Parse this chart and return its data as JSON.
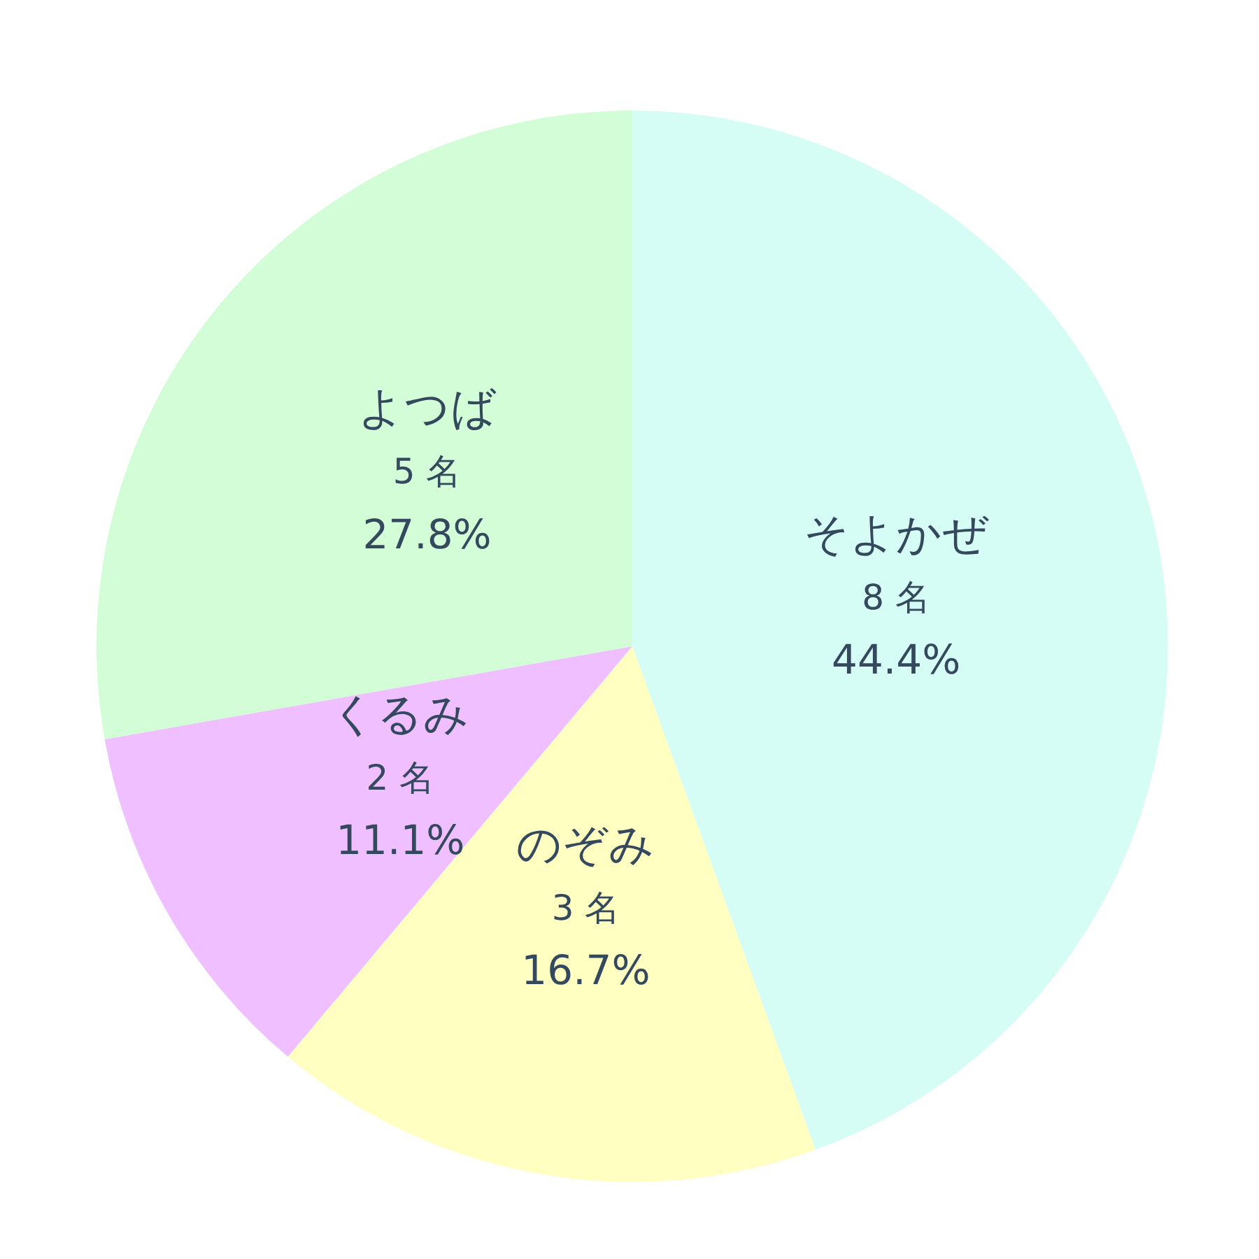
{
  "chart_data": {
    "type": "pie",
    "categories": [
      "そよかぜ",
      "のぞみ",
      "くるみ",
      "よつば"
    ],
    "values": [
      8,
      3,
      2,
      5
    ],
    "colors": [
      "#d6fdf5",
      "#ffffc2",
      "#efbfff",
      "#d3fdd6"
    ],
    "value_labels": [
      "8 名\n44.4%",
      "3 名\n16.7%",
      "2 名\n11.1%",
      "5 名\n27.8%"
    ]
  }
}
